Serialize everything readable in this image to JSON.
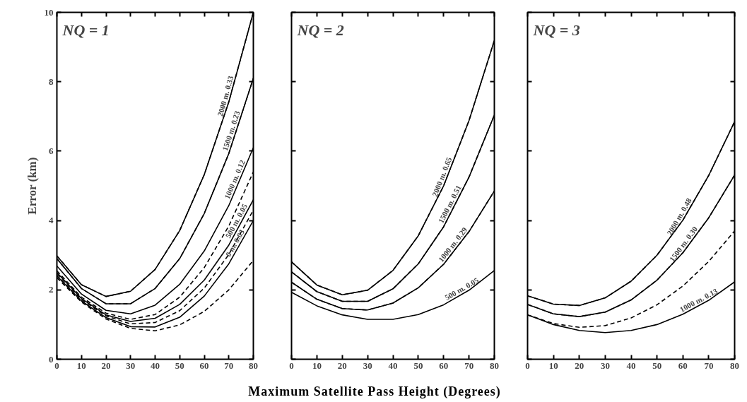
{
  "chart_data": [
    {
      "type": "line",
      "title": "NQ = 1",
      "ylabel": "Error (km)",
      "x": [
        0,
        10,
        20,
        30,
        40,
        50,
        60,
        70,
        80
      ],
      "xlim": [
        0,
        80
      ],
      "xticks": [
        0,
        10,
        20,
        30,
        40,
        50,
        60,
        70,
        80
      ],
      "ylim": [
        0,
        10
      ],
      "yticks": [
        0,
        2,
        4,
        6,
        8,
        10
      ],
      "line_style": "solid",
      "series": [
        {
          "color": "#000000",
          "values": [
            2.98,
            2.15,
            1.81,
            1.96,
            2.59,
            3.71,
            5.32,
            7.42,
            10.0
          ]
        },
        {
          "color": "#000000",
          "values": [
            2.9,
            2.04,
            1.6,
            1.6,
            2.04,
            2.9,
            4.2,
            5.93,
            8.1
          ]
        },
        {
          "color": "#000000",
          "values": [
            2.69,
            1.88,
            1.41,
            1.31,
            1.56,
            2.16,
            3.12,
            4.43,
            6.1
          ]
        },
        {
          "color": "#000000",
          "values": [
            2.5,
            1.75,
            1.28,
            1.09,
            1.18,
            1.58,
            2.28,
            3.29,
            4.6
          ]
        },
        {
          "color": "#000000",
          "values": [
            2.4,
            1.68,
            1.2,
            0.94,
            0.93,
            1.21,
            1.82,
            2.75,
            4.0
          ]
        },
        {
          "color": "#000000",
          "line_style": "dashed",
          "values": [
            2.98,
            2.15,
            1.81,
            1.96,
            2.59,
            3.71,
            5.32,
            7.42,
            10.0
          ]
        },
        {
          "color": "#000000",
          "line_style": "dashed",
          "values": [
            2.9,
            2.04,
            1.6,
            1.6,
            2.04,
            2.9,
            4.2,
            5.93,
            8.1
          ]
        },
        {
          "color": "#000000",
          "line_style": "dashed",
          "values": [
            2.55,
            1.79,
            1.33,
            1.15,
            1.29,
            1.79,
            2.64,
            3.84,
            5.4
          ]
        },
        {
          "color": "#000000",
          "line_style": "dashed",
          "values": [
            2.45,
            1.72,
            1.25,
            1.02,
            1.06,
            1.4,
            2.05,
            3.02,
            4.3
          ]
        },
        {
          "color": "#000000",
          "line_style": "dashed",
          "values": [
            2.35,
            1.65,
            1.16,
            0.89,
            0.82,
            0.99,
            1.38,
            2.0,
            2.85
          ]
        }
      ],
      "annotations": [
        {
          "text": "2000 m. 0.33",
          "x": 70.5,
          "y": 7.55
        },
        {
          "text": "1500 m. 0.23",
          "x": 72.8,
          "y": 6.54
        },
        {
          "text": "1000 m. 0.12",
          "x": 74.2,
          "y": 5.13
        },
        {
          "text": "500 m. 0.05",
          "x": 74.8,
          "y": 3.92
        },
        {
          "text": "0 m. 0.03",
          "x": 74.2,
          "y": 3.28
        }
      ],
      "grid": false
    },
    {
      "type": "line",
      "title": "NQ = 2",
      "xlabel": "Maximum Satellite Pass Height (Degrees)",
      "x": [
        0,
        10,
        20,
        30,
        40,
        50,
        60,
        70,
        80
      ],
      "xlim": [
        0,
        80
      ],
      "xticks": [
        0,
        10,
        20,
        30,
        40,
        50,
        60,
        70,
        80
      ],
      "ylim": [
        0,
        10
      ],
      "yticks": [
        0,
        2,
        4,
        6,
        8,
        10
      ],
      "tick_labels": "x",
      "line_style": "solid",
      "series": [
        {
          "color": "#000000",
          "values": [
            2.81,
            2.14,
            1.86,
            1.99,
            2.56,
            3.56,
            5.0,
            6.88,
            9.19
          ]
        },
        {
          "color": "#000000",
          "values": [
            2.52,
            1.95,
            1.67,
            1.67,
            2.03,
            2.75,
            3.82,
            5.25,
            7.04
          ]
        },
        {
          "color": "#000000",
          "values": [
            2.22,
            1.73,
            1.46,
            1.42,
            1.62,
            2.06,
            2.74,
            3.68,
            4.85
          ]
        },
        {
          "color": "#000000",
          "values": [
            1.93,
            1.54,
            1.28,
            1.15,
            1.15,
            1.29,
            1.57,
            1.99,
            2.56
          ]
        },
        {
          "color": "#000000",
          "line_style": "dashed",
          "values": [
            2.81,
            2.14,
            1.86,
            1.99,
            2.56,
            3.56,
            5.0,
            6.88,
            9.19
          ]
        },
        {
          "color": "#000000",
          "line_style": "dashed",
          "values": [
            2.52,
            1.95,
            1.67,
            1.67,
            2.03,
            2.75,
            3.82,
            5.25,
            7.04
          ]
        },
        {
          "color": "#000000",
          "line_style": "dashed",
          "values": [
            2.22,
            1.73,
            1.46,
            1.42,
            1.62,
            2.06,
            2.74,
            3.68,
            4.85
          ]
        }
      ],
      "annotations": [
        {
          "text": "2000 m. 0.65",
          "x": 61.1,
          "y": 5.21
        },
        {
          "text": "1500 m. 0.51",
          "x": 64.1,
          "y": 4.41
        },
        {
          "text": "1000 m. 0.29",
          "x": 65.1,
          "y": 3.22
        },
        {
          "text": "500 m. 0.05",
          "x": 68.1,
          "y": 1.91
        }
      ],
      "grid": false
    },
    {
      "type": "line",
      "title": "NQ = 3",
      "x": [
        0,
        10,
        20,
        30,
        40,
        50,
        60,
        70,
        80
      ],
      "xlim": [
        0,
        80
      ],
      "xticks": [
        0,
        10,
        20,
        30,
        40,
        50,
        60,
        70,
        80
      ],
      "ylim": [
        0,
        10
      ],
      "yticks": [
        0,
        2,
        4,
        6,
        8,
        10
      ],
      "tick_labels": "x",
      "line_style": "solid",
      "series": [
        {
          "color": "#000000",
          "values": [
            1.83,
            1.59,
            1.55,
            1.77,
            2.25,
            3.0,
            4.01,
            5.3,
            6.85
          ]
        },
        {
          "color": "#000000",
          "values": [
            1.58,
            1.31,
            1.23,
            1.36,
            1.71,
            2.28,
            3.07,
            4.08,
            5.31
          ]
        },
        {
          "color": "#000000",
          "values": [
            1.28,
            1.0,
            0.83,
            0.77,
            0.83,
            1.0,
            1.3,
            1.7,
            2.23
          ]
        },
        {
          "color": "#000000",
          "line_style": "dashed",
          "values": [
            1.83,
            1.59,
            1.55,
            1.77,
            2.25,
            3.0,
            4.01,
            5.3,
            6.85
          ]
        },
        {
          "color": "#000000",
          "line_style": "dashed",
          "values": [
            1.58,
            1.31,
            1.23,
            1.36,
            1.71,
            2.28,
            3.07,
            4.08,
            5.31
          ]
        },
        {
          "color": "#000000",
          "line_style": "dashed",
          "values": [
            1.28,
            1.03,
            0.92,
            0.97,
            1.19,
            1.57,
            2.11,
            2.82,
            3.7
          ]
        }
      ],
      "annotations": [
        {
          "text": "2000 m. 0.48",
          "x": 60.2,
          "y": 4.04
        },
        {
          "text": "1500 m. 0.30",
          "x": 61.7,
          "y": 3.24
        },
        {
          "text": "1000 m. 0.13",
          "x": 67,
          "y": 1.58
        }
      ],
      "grid": false
    }
  ]
}
